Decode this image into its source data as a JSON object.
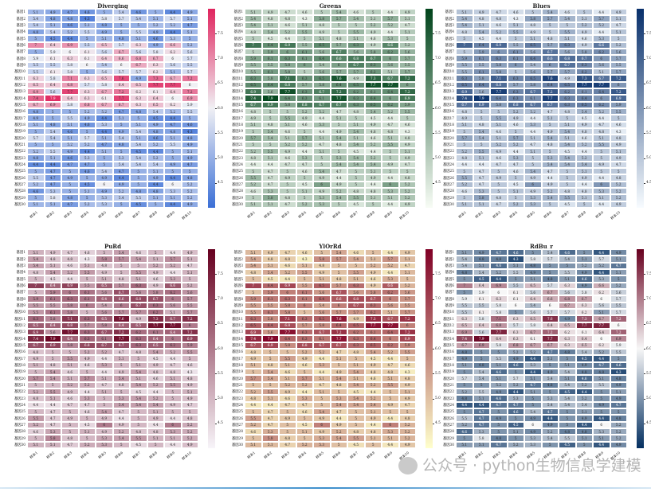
{
  "chart_data": [
    {
      "type": "heatmap",
      "title": "Diverging",
      "cmap": "coolwarm-diverging",
      "low_color": "#3b6fd6",
      "mid_color": "#f0f0f4",
      "high_color": "#e0245e"
    },
    {
      "type": "heatmap",
      "title": "Greens",
      "cmap": "Greens",
      "low_color": "#f7fcf5",
      "high_color": "#00441b"
    },
    {
      "type": "heatmap",
      "title": "Blues",
      "cmap": "Blues",
      "low_color": "#f7fbff",
      "high_color": "#08306b"
    },
    {
      "type": "heatmap",
      "title": "PuRd",
      "cmap": "PuRd",
      "low_color": "#f7f4f9",
      "high_color": "#67001f"
    },
    {
      "type": "heatmap",
      "title": "YlOrRd",
      "cmap": "YlOrRd",
      "low_color": "#ffffcc",
      "high_color": "#800026"
    },
    {
      "type": "heatmap",
      "title": "RdBu_r",
      "cmap": "RdBu_r",
      "low_color": "#053061",
      "mid_color": "#f7f7f7",
      "high_color": "#67001f"
    }
  ],
  "shared": {
    "rows": [
      "基因1",
      "基因2",
      "基因3",
      "基因4",
      "基因5",
      "基因6",
      "基因7",
      "基因8",
      "基因9",
      "基因10",
      "基因11",
      "基因12",
      "基因13",
      "基因14",
      "基因15",
      "基因16",
      "基因17",
      "基因18",
      "基因19",
      "基因20",
      "基因21",
      "基因22",
      "基因23",
      "基因24",
      "基因25",
      "基因26",
      "基因27",
      "基因28",
      "基因29",
      "基因30"
    ],
    "cols": [
      "样本1",
      "样本2",
      "样本3",
      "样本4",
      "样本5",
      "样本6",
      "样本7",
      "样本8",
      "样本9",
      "样本10"
    ],
    "values": [
      [
        5.1,
        4.9,
        4.7,
        4.6,
        5,
        5.4,
        4.6,
        5,
        4.4,
        4.9
      ],
      [
        5.4,
        4.8,
        4.8,
        4.3,
        5.8,
        5.7,
        5.4,
        5.1,
        5.7,
        5.1
      ],
      [
        5.4,
        5.1,
        4.6,
        5.1,
        4.8,
        5,
        5,
        5.2,
        5.2,
        4.7
      ],
      [
        4.8,
        5.4,
        5.2,
        5.5,
        4.9,
        5,
        5.5,
        4.9,
        4.4,
        5.1
      ],
      [
        5,
        4.5,
        4.4,
        5,
        5.1,
        4.8,
        5.1,
        4.6,
        5.3,
        5
      ],
      [
        7,
        6.4,
        6.9,
        5.5,
        6.5,
        5.7,
        6.3,
        4.9,
        6.6,
        5.2
      ],
      [
        5,
        5.9,
        6,
        6.1,
        5.6,
        6.7,
        5.6,
        5.8,
        6.2,
        5.6
      ],
      [
        5.9,
        6.1,
        6.3,
        6.1,
        6.4,
        6.6,
        6.8,
        6.7,
        6,
        5.7
      ],
      [
        5.5,
        5.5,
        5.8,
        6,
        5.4,
        6,
        6.7,
        6.3,
        5.6,
        5.5
      ],
      [
        5.5,
        6.1,
        5.8,
        5,
        5.6,
        5.7,
        5.7,
        6.2,
        5.1,
        5.7
      ],
      [
        6.3,
        5.8,
        7.1,
        6.3,
        6.5,
        7.6,
        4.9,
        7.3,
        6.7,
        7.2
      ],
      [
        6.5,
        6.4,
        6.8,
        5.7,
        5.8,
        6.4,
        6.5,
        7.7,
        7.7,
        6
      ],
      [
        6.9,
        5.6,
        7.7,
        6.3,
        6.7,
        7.2,
        6.2,
        6.1,
        6.4,
        7.2
      ],
      [
        7.4,
        7.9,
        6.4,
        6.3,
        6.1,
        7.7,
        6.3,
        6.4,
        6,
        6.9
      ],
      [
        6.7,
        6.9,
        5.8,
        6.8,
        6.7,
        6.7,
        6.3,
        6.5,
        6.2,
        5.9
      ],
      [
        4.8,
        5,
        5,
        5.2,
        5.2,
        4.7,
        4.8,
        5.4,
        5.2,
        5.5
      ],
      [
        4.9,
        5,
        5.5,
        4.9,
        4.4,
        5.1,
        5,
        4.5,
        4.4,
        5
      ],
      [
        5.1,
        4.8,
        5.1,
        4.6,
        5.3,
        5,
        5.1,
        4.9,
        4.7,
        4.6
      ],
      [
        5,
        5.4,
        4.6,
        5,
        4.4,
        4.9,
        5.4,
        4.8,
        4.8,
        4.3
      ],
      [
        5.7,
        5.4,
        5.1,
        5.7,
        5.1,
        5.4,
        5.1,
        4.6,
        5.1,
        4.8
      ],
      [
        5,
        5,
        5.2,
        5.2,
        4.7,
        4.8,
        5.4,
        5.2,
        5.5,
        4.9
      ],
      [
        5.2,
        5.5,
        4.9,
        4.4,
        5.1,
        5,
        4.5,
        4.4,
        5,
        5.1
      ],
      [
        4.8,
        5.1,
        4.6,
        5.3,
        5,
        5.3,
        5.4,
        5.2,
        5,
        4.9
      ],
      [
        4.4,
        4.4,
        4.7,
        4.7,
        5,
        5.4,
        5.4,
        5.4,
        4.9,
        4.7
      ],
      [
        5,
        4.7,
        5,
        4.6,
        5.4,
        4.7,
        5,
        5.1,
        5,
        5
      ],
      [
        5.5,
        4.7,
        4.9,
        5,
        4.9,
        4.4,
        5,
        4.9,
        4.4,
        4.8
      ],
      [
        5.2,
        4.7,
        5,
        4.5,
        6,
        4.9,
        5,
        4.4,
        6,
        5.2
      ],
      [
        4.6,
        5.3,
        5,
        5.1,
        4.9,
        5.2,
        4.8,
        4.8,
        5.3,
        5.2
      ],
      [
        5,
        5.8,
        4.8,
        5,
        5.3,
        5.4,
        5.5,
        5.1,
        5.1,
        5.2
      ],
      [
        5.1,
        5.1,
        4.7,
        5.2,
        5.3,
        5,
        4.5,
        5,
        4.4,
        4.9
      ]
    ],
    "vmin": 4.0,
    "vmax": 8.0,
    "colorbar_ticks": [
      "4.5",
      "5.0",
      "5.5",
      "6.0",
      "6.5",
      "7.0",
      "7.5"
    ]
  },
  "watermark": "公众号 · python生物信息学建模"
}
